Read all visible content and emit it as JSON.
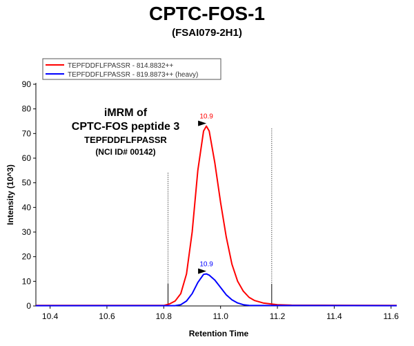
{
  "header": {
    "title": "CPTC-FOS-1",
    "subtitle": "(FSAI079-2H1)"
  },
  "annotation": {
    "line1": "iMRM of",
    "line2": "CPTC-FOS peptide 3",
    "line3": "TEPFDDFLFPASSR",
    "line4": "(NCI ID# 00142)"
  },
  "colors": {
    "light": "#ff0000",
    "heavy": "#0000ff"
  },
  "chart_data": {
    "type": "line",
    "xlabel": "Retention Time",
    "ylabel": "Intensity (10^3)",
    "xlim": [
      10.35,
      11.62
    ],
    "ylim": [
      0,
      90
    ],
    "xticks": [
      10.4,
      10.6,
      10.8,
      11.0,
      11.2,
      11.4,
      11.6
    ],
    "yticks": [
      0,
      10,
      20,
      30,
      40,
      50,
      60,
      70,
      80,
      90
    ],
    "integration_bounds": [
      10.815,
      11.18
    ],
    "legend_position": "top-left",
    "series": [
      {
        "name": "TEPFDDFLFPASSR - 814.8832++",
        "color": "#ff0000",
        "peak_label": "10.9",
        "apex": [
          10.95,
          73
        ],
        "points": [
          [
            10.35,
            0.2
          ],
          [
            10.8,
            0.2
          ],
          [
            10.82,
            0.8
          ],
          [
            10.84,
            2
          ],
          [
            10.86,
            5
          ],
          [
            10.88,
            13
          ],
          [
            10.9,
            30
          ],
          [
            10.92,
            55
          ],
          [
            10.94,
            71
          ],
          [
            10.95,
            73
          ],
          [
            10.96,
            71
          ],
          [
            10.98,
            58
          ],
          [
            11.0,
            42
          ],
          [
            11.02,
            28
          ],
          [
            11.04,
            17
          ],
          [
            11.06,
            10
          ],
          [
            11.08,
            6
          ],
          [
            11.1,
            3.5
          ],
          [
            11.12,
            2.2
          ],
          [
            11.15,
            1.2
          ],
          [
            11.2,
            0.5
          ],
          [
            11.25,
            0.3
          ],
          [
            11.62,
            0.2
          ]
        ]
      },
      {
        "name": "TEPFDDFLFPASSR - 819.8873++ (heavy)",
        "color": "#0000ff",
        "peak_label": "10.9",
        "apex": [
          10.95,
          13
        ],
        "points": [
          [
            10.35,
            0.1
          ],
          [
            10.84,
            0.1
          ],
          [
            10.86,
            0.5
          ],
          [
            10.88,
            2
          ],
          [
            10.9,
            5
          ],
          [
            10.92,
            9.5
          ],
          [
            10.94,
            12.8
          ],
          [
            10.95,
            13
          ],
          [
            10.96,
            12.5
          ],
          [
            10.98,
            10.5
          ],
          [
            11.0,
            7.5
          ],
          [
            11.02,
            4.5
          ],
          [
            11.04,
            2.5
          ],
          [
            11.06,
            1.2
          ],
          [
            11.08,
            0.5
          ],
          [
            11.1,
            0.2
          ],
          [
            11.62,
            0.1
          ]
        ]
      }
    ]
  }
}
